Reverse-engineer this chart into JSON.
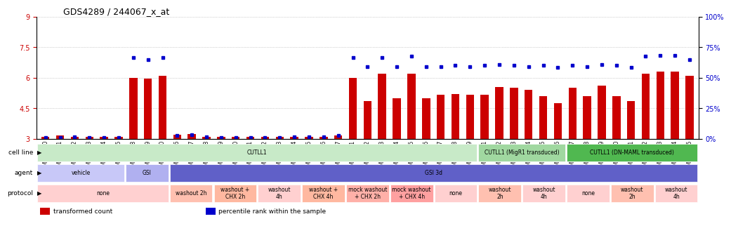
{
  "title": "GDS4289 / 244067_x_at",
  "samples": [
    "GSM731500",
    "GSM731501",
    "GSM731502",
    "GSM731503",
    "GSM731504",
    "GSM731505",
    "GSM731518",
    "GSM731519",
    "GSM731520",
    "GSM731506",
    "GSM731507",
    "GSM731508",
    "GSM731509",
    "GSM731510",
    "GSM731511",
    "GSM731512",
    "GSM731513",
    "GSM731514",
    "GSM731515",
    "GSM731516",
    "GSM731517",
    "GSM731521",
    "GSM731522",
    "GSM731523",
    "GSM731524",
    "GSM731525",
    "GSM731526",
    "GSM731527",
    "GSM731528",
    "GSM731529",
    "GSM731531",
    "GSM731532",
    "GSM731533",
    "GSM731534",
    "GSM731535",
    "GSM731536",
    "GSM731537",
    "GSM731538",
    "GSM731539",
    "GSM731540",
    "GSM731541",
    "GSM731542",
    "GSM731543",
    "GSM731544",
    "GSM731545"
  ],
  "bar_values": [
    3.1,
    3.15,
    3.1,
    3.1,
    3.1,
    3.1,
    6.0,
    5.95,
    6.1,
    3.2,
    3.25,
    3.1,
    3.1,
    3.1,
    3.1,
    3.1,
    3.1,
    3.1,
    3.1,
    3.1,
    3.15,
    6.0,
    4.85,
    6.2,
    5.0,
    6.2,
    5.0,
    5.15,
    5.2,
    5.15,
    5.15,
    5.55,
    5.5,
    5.4,
    5.1,
    4.75,
    5.5,
    5.1,
    5.6,
    5.1,
    4.85,
    6.2,
    6.3,
    6.3,
    6.1
  ],
  "percentile_values": [
    3.05,
    3.05,
    3.1,
    3.05,
    3.05,
    3.05,
    7.0,
    6.9,
    7.0,
    3.15,
    3.2,
    3.1,
    3.05,
    3.05,
    3.05,
    3.05,
    3.05,
    3.1,
    3.1,
    3.1,
    3.15,
    7.0,
    6.55,
    7.0,
    6.55,
    7.05,
    6.55,
    6.55,
    6.6,
    6.55,
    6.6,
    6.65,
    6.6,
    6.55,
    6.6,
    6.5,
    6.6,
    6.55,
    6.65,
    6.6,
    6.5,
    7.05,
    7.1,
    7.1,
    6.9
  ],
  "ylim_left": [
    3,
    9
  ],
  "ylim_right": [
    0,
    100
  ],
  "yticks_left": [
    3,
    4.5,
    6,
    7.5,
    9
  ],
  "yticks_right": [
    0,
    25,
    50,
    75,
    100
  ],
  "bar_color": "#cc0000",
  "dot_color": "#0000cc",
  "grid_color": "#aaaaaa",
  "cell_line_row": {
    "groups": [
      {
        "label": "CUTLL1",
        "start": 0,
        "end": 30,
        "color": "#c8eac8"
      },
      {
        "label": "CUTLL1 (MigR1 transduced)",
        "start": 30,
        "end": 36,
        "color": "#a0d8a0"
      },
      {
        "label": "CUTLL1 (DN-MAML transduced)",
        "start": 36,
        "end": 45,
        "color": "#50b850"
      }
    ]
  },
  "agent_row": {
    "groups": [
      {
        "label": "vehicle",
        "start": 0,
        "end": 6,
        "color": "#c8c8f8"
      },
      {
        "label": "GSI",
        "start": 6,
        "end": 9,
        "color": "#b0b0f0"
      },
      {
        "label": "GSI 3d",
        "start": 9,
        "end": 45,
        "color": "#6060c8"
      }
    ]
  },
  "protocol_row": {
    "groups": [
      {
        "label": "none",
        "start": 0,
        "end": 9,
        "color": "#ffd0d0"
      },
      {
        "label": "washout 2h",
        "start": 9,
        "end": 12,
        "color": "#ffc0b0"
      },
      {
        "label": "washout +\nCHX 2h",
        "start": 12,
        "end": 15,
        "color": "#ffb8a0"
      },
      {
        "label": "washout\n4h",
        "start": 15,
        "end": 18,
        "color": "#ffd0d0"
      },
      {
        "label": "washout +\nCHX 4h",
        "start": 18,
        "end": 21,
        "color": "#ffb8a0"
      },
      {
        "label": "mock washout\n+ CHX 2h",
        "start": 21,
        "end": 24,
        "color": "#ffb0a8"
      },
      {
        "label": "mock washout\n+ CHX 4h",
        "start": 24,
        "end": 27,
        "color": "#ffa0a0"
      },
      {
        "label": "none",
        "start": 27,
        "end": 30,
        "color": "#ffd0d0"
      },
      {
        "label": "washout\n2h",
        "start": 30,
        "end": 33,
        "color": "#ffc0b0"
      },
      {
        "label": "washout\n4h",
        "start": 33,
        "end": 36,
        "color": "#ffd0d0"
      },
      {
        "label": "none",
        "start": 36,
        "end": 39,
        "color": "#ffd0d0"
      },
      {
        "label": "washout\n2h",
        "start": 39,
        "end": 42,
        "color": "#ffc0b0"
      },
      {
        "label": "washout\n4h",
        "start": 42,
        "end": 45,
        "color": "#ffd0d0"
      }
    ]
  },
  "annotation_labels": [
    "cell line",
    "agent",
    "protocol"
  ],
  "legend_items": [
    {
      "color": "#cc0000",
      "label": "transformed count"
    },
    {
      "color": "#0000cc",
      "label": "percentile rank within the sample"
    }
  ]
}
